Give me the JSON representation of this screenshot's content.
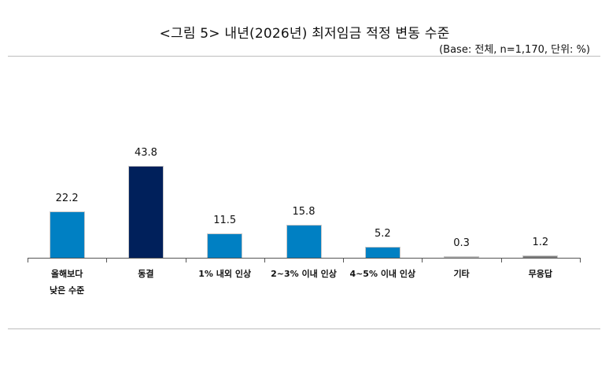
{
  "header": {
    "title": "<그림 5> 내년(2026년) 최저임금 적정 변동 수준",
    "base_note": "(Base: 전체, n=1,170, 단위: %)"
  },
  "colors": {
    "primary_blue": "#0080C3",
    "dark_navy": "#00205B",
    "gray_bar": "#808080",
    "light_gray_bar": "#B0B0B0"
  },
  "chart_data": {
    "type": "bar",
    "title": "<그림 5> 내년(2026년) 최저임금 적정 변동 수준",
    "subtitle": "(Base: 전체, n=1,170, 단위: %)",
    "xlabel": "",
    "ylabel": "",
    "categories": [
      "올해보다\n낮은 수준",
      "동결",
      "1% 내외 인상",
      "2~3% 이내 인상",
      "4~5% 이내 인상",
      "기타",
      "무응답"
    ],
    "values": [
      22.2,
      43.8,
      11.5,
      15.8,
      5.2,
      0.3,
      1.2
    ],
    "bar_colors": [
      "#0080C3",
      "#00205B",
      "#0080C3",
      "#0080C3",
      "#0080C3",
      "#B0B0B0",
      "#808080"
    ],
    "data_labels": [
      "22.2",
      "43.8",
      "11.5",
      "15.8",
      "5.2",
      "0.3",
      "1.2"
    ],
    "ylim": [
      0,
      50
    ],
    "grid": false,
    "legend": null
  },
  "bars": [
    {
      "label_line1": "올해보다",
      "label_line2": "낮은 수준",
      "value": "22.2"
    },
    {
      "label_line1": "동결",
      "label_line2": "",
      "value": "43.8"
    },
    {
      "label_line1": "1% 내외 인상",
      "label_line2": "",
      "value": "11.5"
    },
    {
      "label_line1": "2~3% 이내 인상",
      "label_line2": "",
      "value": "15.8"
    },
    {
      "label_line1": "4~5% 이내 인상",
      "label_line2": "",
      "value": "5.2"
    },
    {
      "label_line1": "기타",
      "label_line2": "",
      "value": "0.3"
    },
    {
      "label_line1": "무응답",
      "label_line2": "",
      "value": "1.2"
    }
  ]
}
